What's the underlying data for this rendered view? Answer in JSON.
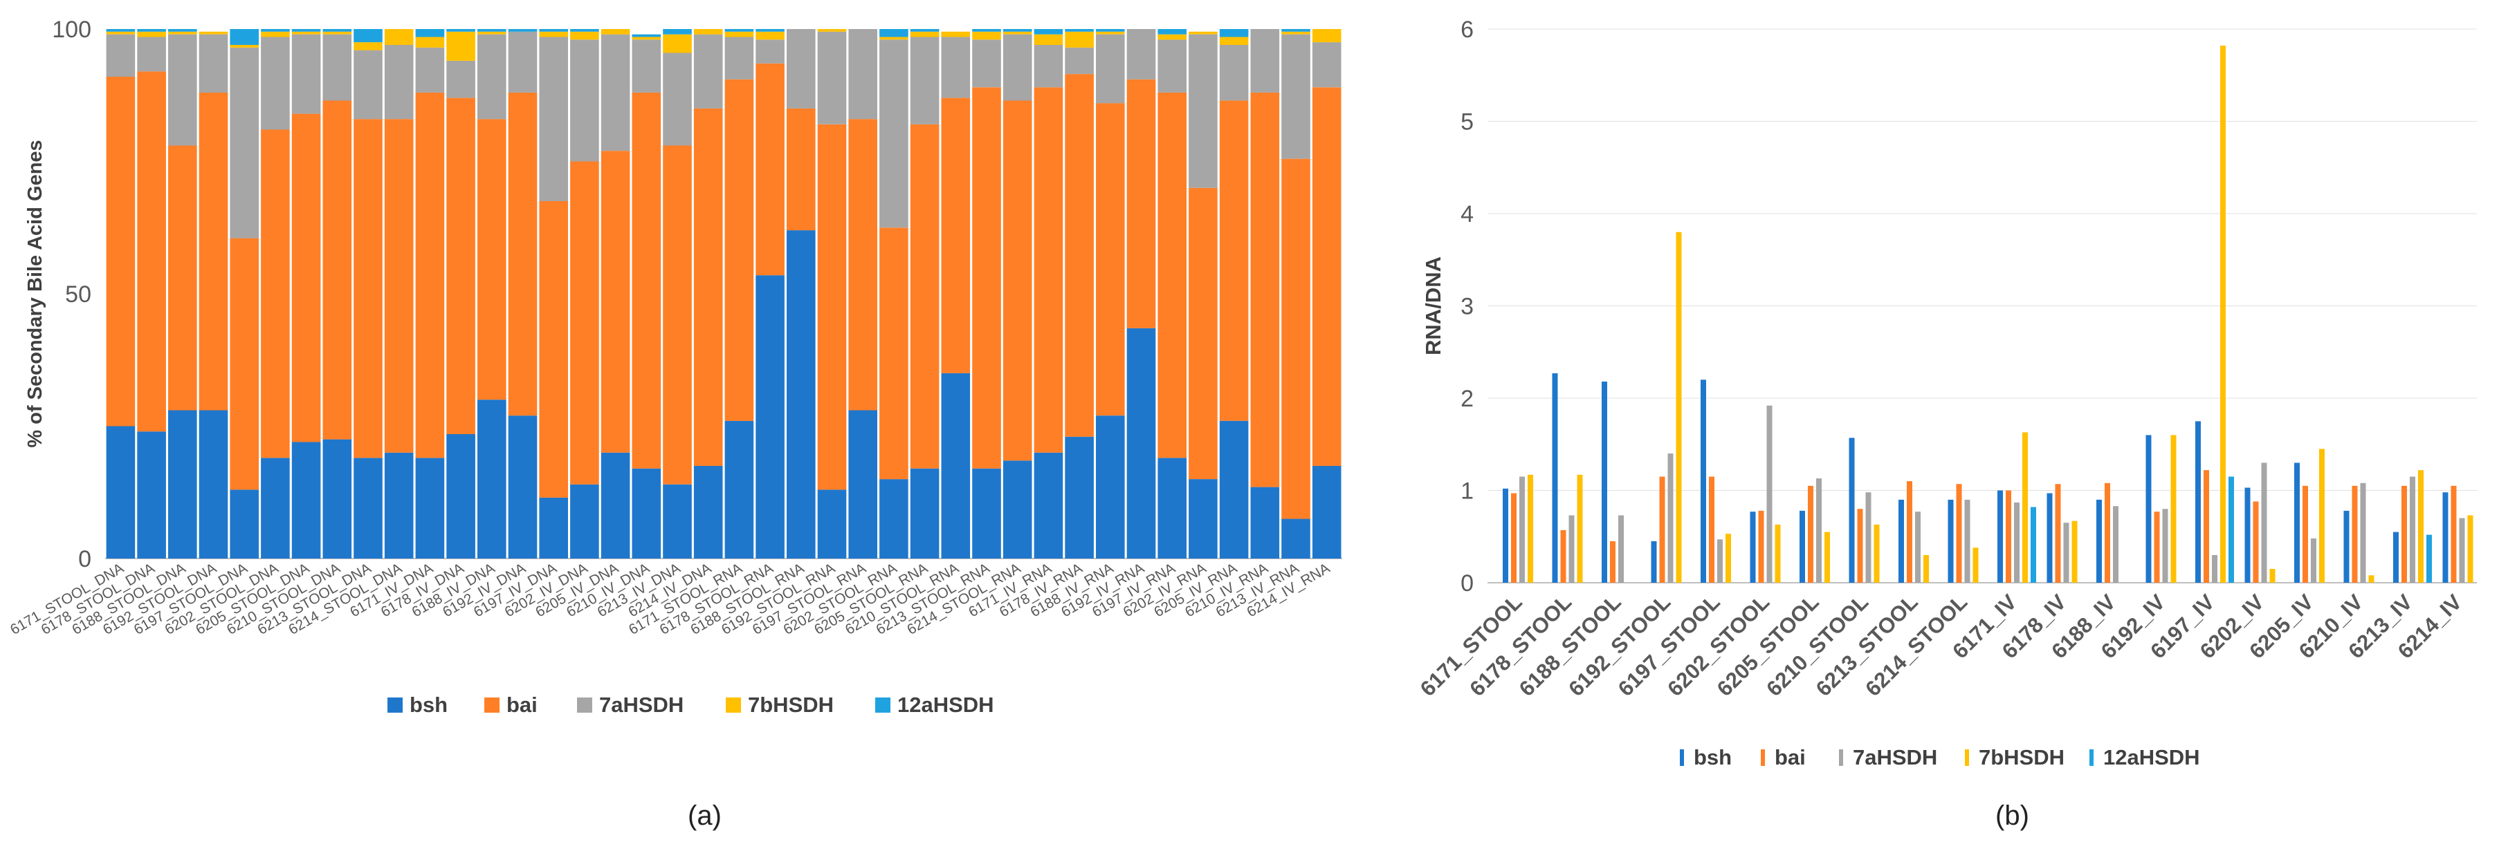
{
  "panels": {
    "a": "(a)",
    "b": "(b)"
  },
  "colors": {
    "bsh": "#1F77CC",
    "bai": "#FF7F27",
    "7aHSDH": "#A6A6A6",
    "7bHSDH": "#FFC000",
    "12aHSDH": "#1FA3E0"
  },
  "chart_data": [
    {
      "type": "bar",
      "stacked": true,
      "panel": "(a)",
      "ylabel": "% of Secondary Bile Acid Genes",
      "xlabel": "",
      "ylim": [
        0,
        100
      ],
      "yticks": [
        0,
        50,
        100
      ],
      "legend": "bottom",
      "categories": [
        "6171_STOOL_DNA",
        "6178_STOOL_DNA",
        "6188_STOOL_DNA",
        "6192_STOOL_DNA",
        "6197_STOOL_DNA",
        "6202_STOOL_DNA",
        "6205_STOOL_DNA",
        "6210_STOOL_DNA",
        "6213_STOOL_DNA",
        "6214_STOOL_DNA",
        "6171_IV_DNA",
        "6178_IV_DNA",
        "6188_IV_DNA",
        "6192_IV_DNA",
        "6197_IV_DNA",
        "6202_IV_DNA",
        "6205_IV_DNA",
        "6210_IV_DNA",
        "6213_IV_DNA",
        "6214_IV_DNA",
        "6171_STOOL_RNA",
        "6178_STOOL_RNA",
        "6188_STOOL_RNA",
        "6192_STOOL_RNA",
        "6197_STOOL_RNA",
        "6202_STOOL_RNA",
        "6205_STOOL_RNA",
        "6210_STOOL_RNA",
        "6213_STOOL_RNA",
        "6214_STOOL_RNA",
        "6171_IV_RNA",
        "6178_IV_RNA",
        "6188_IV_RNA",
        "6192_IV_RNA",
        "6197_IV_RNA",
        "6202_IV_RNA",
        "6205_IV_RNA",
        "6210_IV_RNA",
        "6213_IV_RNA",
        "6214_IV_RNA"
      ],
      "series": [
        {
          "name": "bsh",
          "values": [
            25,
            24,
            28,
            28,
            13,
            19,
            22,
            22.5,
            19,
            20,
            19,
            23.5,
            30,
            27,
            11.5,
            14,
            20,
            17,
            14,
            17.5,
            26,
            53.5,
            62,
            13,
            28,
            15,
            17,
            35,
            17,
            18.5,
            20,
            23,
            27,
            43.5,
            19,
            15,
            26,
            13.5,
            7.5,
            17.5
          ]
        },
        {
          "name": "bai",
          "values": [
            66,
            68,
            50,
            60,
            47.5,
            62,
            62,
            64,
            64,
            63,
            69,
            63.5,
            53,
            61,
            56,
            61,
            57,
            71,
            64,
            67.5,
            64.5,
            40,
            23,
            69,
            55,
            47.5,
            65,
            52,
            72,
            68,
            69,
            68.5,
            59,
            47,
            69,
            55,
            60.5,
            74.5,
            68,
            71.5
          ]
        },
        {
          "name": "7aHSDH",
          "values": [
            8,
            6.5,
            21,
            11,
            36,
            17.5,
            15,
            12.5,
            13,
            14,
            8.5,
            7,
            16,
            11.5,
            31,
            23,
            22,
            10,
            17.5,
            14,
            8,
            4.5,
            15,
            17.5,
            17,
            35.5,
            16.5,
            11.5,
            9,
            12.5,
            8,
            5,
            13,
            9.5,
            10,
            29,
            10.5,
            12,
            23.5,
            8.5
          ]
        },
        {
          "name": "7bHSDH",
          "values": [
            0.5,
            1,
            0.5,
            0.5,
            0.5,
            1,
            0.5,
            0.5,
            1.5,
            3,
            2,
            5.5,
            0.5,
            0,
            1,
            1.5,
            1,
            0.5,
            3.5,
            1,
            1,
            1.5,
            0,
            0.5,
            0,
            0.5,
            1,
            1,
            1.5,
            0.5,
            2,
            3,
            0.5,
            0,
            1,
            0.5,
            1.5,
            0,
            0.5,
            2.5
          ]
        },
        {
          "name": "12aHSDH",
          "values": [
            0.5,
            0.5,
            0.5,
            0,
            3,
            0.5,
            0.5,
            0.5,
            2.5,
            0,
            1.5,
            0.5,
            0.5,
            0.5,
            0.5,
            0.5,
            0,
            0.5,
            1,
            0,
            0.5,
            0.5,
            0,
            0,
            0,
            1.5,
            0.5,
            0,
            0.5,
            0.5,
            1,
            0.5,
            0.5,
            0,
            1,
            0,
            1.5,
            0,
            0.5,
            0
          ]
        }
      ]
    },
    {
      "type": "bar",
      "stacked": false,
      "panel": "(b)",
      "ylabel": "RNA/DNA",
      "xlabel": "",
      "ylim": [
        0,
        6
      ],
      "yticks": [
        0,
        1,
        2,
        3,
        4,
        5,
        6
      ],
      "legend": "bottom",
      "categories": [
        "6171_STOOL",
        "6178_STOOL",
        "6188_STOOL",
        "6192_STOOL",
        "6197_STOOL",
        "6202_STOOL",
        "6205_STOOL",
        "6210_STOOL",
        "6213_STOOL",
        "6214_STOOL",
        "6171_IV",
        "6178_IV",
        "6188_IV",
        "6192_IV",
        "6197_IV",
        "6202_IV",
        "6205_IV",
        "6210_IV",
        "6213_IV",
        "6214_IV"
      ],
      "series": [
        {
          "name": "bsh",
          "values": [
            1.02,
            2.27,
            2.18,
            0.45,
            2.2,
            0.77,
            0.78,
            1.57,
            0.9,
            0.9,
            1.0,
            0.97,
            0.9,
            1.6,
            1.75,
            1.03,
            1.3,
            0.78,
            0.55,
            0.98
          ]
        },
        {
          "name": "bai",
          "values": [
            0.97,
            0.57,
            0.45,
            1.15,
            1.15,
            0.78,
            1.05,
            0.8,
            1.1,
            1.07,
            1.0,
            1.07,
            1.08,
            0.77,
            1.22,
            0.88,
            1.05,
            1.05,
            1.05,
            1.05
          ]
        },
        {
          "name": "7aHSDH",
          "values": [
            1.15,
            0.73,
            0.73,
            1.4,
            0.47,
            1.92,
            1.13,
            0.98,
            0.77,
            0.9,
            0.87,
            0.65,
            0.83,
            0.8,
            0.3,
            1.3,
            0.48,
            1.08,
            1.15,
            0.7
          ]
        },
        {
          "name": "7bHSDH",
          "values": [
            1.17,
            1.17,
            0,
            3.8,
            0.53,
            0.63,
            0.55,
            0.63,
            0.3,
            0.38,
            1.63,
            0.67,
            0,
            1.6,
            5.82,
            0.15,
            1.45,
            0.08,
            1.22,
            0.73
          ]
        },
        {
          "name": "12aHSDH",
          "values": [
            0,
            0,
            0,
            0,
            0,
            0,
            0,
            0,
            0,
            0,
            0.82,
            0,
            0,
            0,
            1.15,
            0,
            0,
            0,
            0.52,
            0
          ]
        }
      ]
    }
  ]
}
